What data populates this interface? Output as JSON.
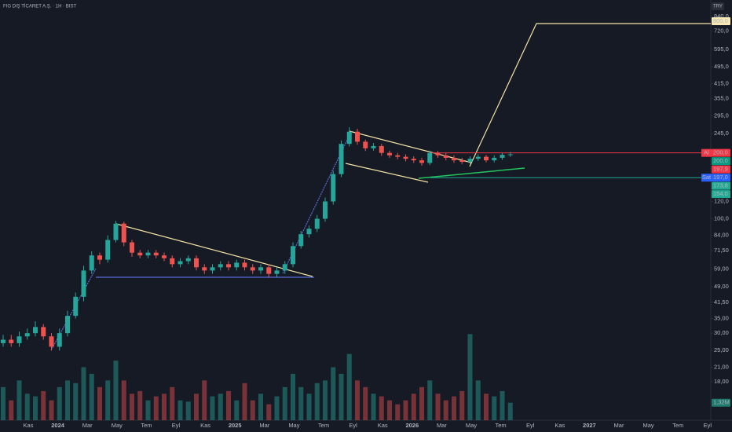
{
  "chart_data": {
    "type": "candlestick",
    "title": "FIG DIŞ TİCARET A.Ş. · 1H · BIST",
    "currency": "TRY",
    "log_scale": true,
    "ylim": [
      12,
      1000
    ],
    "yticks": [
      {
        "value": 840,
        "label": "840,0"
      },
      {
        "value": 720,
        "label": "720,0"
      },
      {
        "value": 595,
        "label": "595,0"
      },
      {
        "value": 495,
        "label": "495,0"
      },
      {
        "value": 415,
        "label": "415,0"
      },
      {
        "value": 355,
        "label": "355,0"
      },
      {
        "value": 295,
        "label": "295,0"
      },
      {
        "value": 245,
        "label": "245,0"
      },
      {
        "value": 120,
        "label": "120,0"
      },
      {
        "value": 100,
        "label": "100,0"
      },
      {
        "value": 84,
        "label": "84,00"
      },
      {
        "value": 71.5,
        "label": "71,50"
      },
      {
        "value": 59,
        "label": "59,00"
      },
      {
        "value": 49,
        "label": "49,00"
      },
      {
        "value": 41.5,
        "label": "41,50"
      },
      {
        "value": 35,
        "label": "35,00"
      },
      {
        "value": 30,
        "label": "30,00"
      },
      {
        "value": 25,
        "label": "25,00"
      },
      {
        "value": 21,
        "label": "21,00"
      },
      {
        "value": 18,
        "label": "18,00"
      }
    ],
    "time_labels": [
      "Kas",
      "2024",
      "Mar",
      "May",
      "Tem",
      "Eyl",
      "Kas",
      "2025",
      "Mar",
      "May",
      "Tem",
      "Eyl",
      "Kas",
      "2026",
      "Mar",
      "May",
      "Tem",
      "Eyl",
      "Kas",
      "2027",
      "Mar",
      "May",
      "Tem",
      "Eyl"
    ],
    "up_color": "#26a69a",
    "down_color": "#ef5350",
    "open": [
      27,
      28,
      27,
      29,
      30,
      32,
      29,
      26,
      30,
      36,
      44,
      58,
      68,
      65,
      80,
      95,
      78,
      70,
      68,
      70,
      68,
      66,
      62,
      64,
      66,
      60,
      58,
      60,
      62,
      60,
      63,
      60,
      58,
      60,
      56,
      58,
      62,
      75,
      85,
      90,
      100,
      120,
      160,
      220,
      250,
      225,
      210,
      215,
      200,
      195,
      192,
      188,
      185,
      180,
      200,
      195,
      190,
      185,
      182,
      188,
      192,
      185,
      190,
      196
    ],
    "high": [
      29.5,
      29.5,
      30.5,
      31.5,
      34,
      33,
      30,
      31.5,
      38,
      46,
      61,
      71,
      70,
      84,
      98,
      97,
      80,
      72,
      72,
      72,
      70,
      68,
      66,
      68,
      68,
      62,
      62,
      64,
      64,
      65,
      65,
      62,
      62,
      62,
      60,
      64,
      78,
      88,
      93,
      104,
      125,
      166,
      228,
      262,
      258,
      230,
      222,
      220,
      205,
      200,
      197,
      193,
      190,
      205,
      204,
      200,
      195,
      190,
      193,
      197,
      196,
      195,
      200,
      202
    ],
    "low": [
      26,
      26,
      26,
      28,
      29,
      28,
      25,
      25,
      29,
      35,
      42,
      56,
      62,
      63,
      78,
      75,
      67,
      66,
      66,
      66,
      64,
      60,
      60,
      62,
      58,
      56,
      56,
      58,
      58,
      58,
      58,
      56,
      56,
      54,
      54,
      56,
      60,
      73,
      82,
      87,
      97,
      116,
      155,
      214,
      218,
      204,
      205,
      194,
      190,
      187,
      183,
      180,
      175,
      176,
      190,
      185,
      180,
      178,
      178,
      184,
      181,
      181,
      186,
      192
    ],
    "close": [
      28,
      27,
      29,
      30,
      32,
      29,
      26,
      30,
      36,
      44,
      58,
      68,
      65,
      80,
      95,
      78,
      70,
      68,
      70,
      68,
      66,
      62,
      64,
      66,
      60,
      58,
      60,
      62,
      60,
      63,
      60,
      58,
      60,
      56,
      58,
      62,
      75,
      85,
      90,
      100,
      120,
      160,
      220,
      250,
      225,
      210,
      215,
      200,
      195,
      192,
      188,
      185,
      180,
      200,
      195,
      190,
      185,
      182,
      188,
      192,
      185,
      190,
      196,
      197
    ],
    "volume": [
      2.5,
      1.5,
      3,
      2,
      1.8,
      2.2,
      1.5,
      2.5,
      3,
      2.8,
      4,
      3.5,
      2.5,
      3,
      4.5,
      3,
      2,
      2.2,
      1.5,
      1.8,
      2,
      2.5,
      1.5,
      1.4,
      2,
      3,
      1.8,
      2,
      2.2,
      1.5,
      2.8,
      1.5,
      2,
      1.2,
      1.8,
      2.5,
      3.5,
      2.5,
      2,
      2.8,
      3,
      4,
      3.5,
      5,
      3,
      2.5,
      2,
      1.8,
      1.5,
      1.2,
      1.5,
      2,
      2.5,
      3,
      2,
      1.5,
      1.8,
      2.2,
      6.5,
      3,
      2,
      1.8,
      2.2,
      1.32
    ],
    "volume_lim": [
      0,
      8
    ],
    "volume_last_label": "1,32M",
    "levels": [
      {
        "value": 200,
        "color": "#f23645"
      },
      {
        "value": 154,
        "color": "#22ab94"
      }
    ],
    "price_tags": [
      {
        "value": 800,
        "label": "800,0",
        "color": "#f7e9b3"
      },
      {
        "value": 200,
        "label": "200,0",
        "color": "#f23645",
        "tag": "Al"
      },
      {
        "value": 200,
        "label": "200,0",
        "color": "#089981"
      },
      {
        "value": 197.9,
        "label": "197,9",
        "color": "#f23645"
      },
      {
        "value": 197,
        "label": "197,0",
        "color": "#2962ff",
        "tag": "Sat"
      },
      {
        "value": 173.8,
        "label": "173,8",
        "color": "#22ab94"
      },
      {
        "value": 154,
        "label": "154,0",
        "color": "#22ab94"
      }
    ]
  }
}
